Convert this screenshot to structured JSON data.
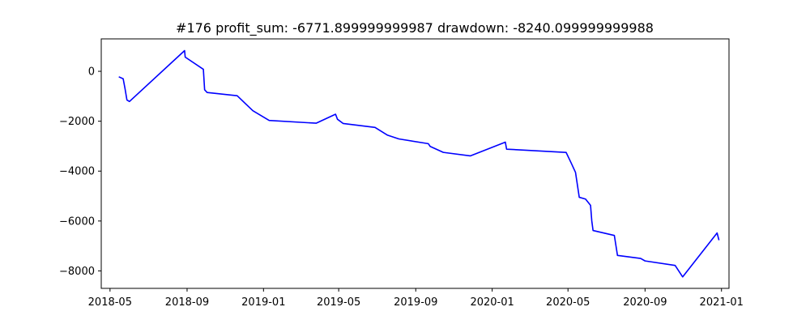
{
  "chart_data": {
    "type": "line",
    "title": "#176   profit_sum: -6771.899999999987 drawdown: -8240.099999999988",
    "xlabel": "",
    "ylabel": "",
    "x_axis": "date",
    "xlim": [
      "2018-04-17",
      "2021-01-13"
    ],
    "ylim": [
      -8700,
      1300
    ],
    "grid": false,
    "xticks": [
      "2018-05-01",
      "2018-09-01",
      "2019-01-01",
      "2019-05-01",
      "2019-09-01",
      "2020-01-01",
      "2020-05-01",
      "2020-09-01",
      "2021-01-01"
    ],
    "xtick_labels": [
      "2018-05",
      "2018-09",
      "2019-01",
      "2019-05",
      "2019-09",
      "2020-01",
      "2020-05",
      "2020-09",
      "2021-01"
    ],
    "yticks": [
      0,
      -2000,
      -4000,
      -6000,
      -8000
    ],
    "ytick_labels": [
      "0",
      "−2000",
      "−4000",
      "−6000",
      "−8000"
    ],
    "series": [
      {
        "color": "#0000ff",
        "x": [
          "2018-05-15",
          "2018-05-22",
          "2018-05-25",
          "2018-05-28",
          "2018-06-01",
          "2018-08-28",
          "2018-08-29",
          "2018-09-27",
          "2018-09-29",
          "2018-10-03",
          "2018-11-20",
          "2018-12-15",
          "2019-01-10",
          "2019-03-26",
          "2019-04-26",
          "2019-04-29",
          "2019-05-08",
          "2019-06-28",
          "2019-07-18",
          "2019-08-05",
          "2019-09-21",
          "2019-09-24",
          "2019-10-15",
          "2019-11-27",
          "2020-01-22",
          "2020-01-24",
          "2020-04-28",
          "2020-05-06",
          "2020-05-13",
          "2020-05-19",
          "2020-05-29",
          "2020-06-06",
          "2020-06-08",
          "2020-06-10",
          "2020-07-14",
          "2020-07-19",
          "2020-08-25",
          "2020-09-01",
          "2020-10-19",
          "2020-10-31",
          "2020-12-25",
          "2020-12-28"
        ],
        "y": [
          -220,
          -300,
          -700,
          -1150,
          -1210,
          830,
          570,
          80,
          -740,
          -850,
          -980,
          -1580,
          -1970,
          -2080,
          -1720,
          -1920,
          -2090,
          -2250,
          -2560,
          -2710,
          -2900,
          -3010,
          -3250,
          -3390,
          -2840,
          -3120,
          -3250,
          -3670,
          -4050,
          -5050,
          -5120,
          -5370,
          -6000,
          -6380,
          -6580,
          -7380,
          -7500,
          -7600,
          -7780,
          -8240,
          -6480,
          -6770
        ]
      }
    ]
  }
}
